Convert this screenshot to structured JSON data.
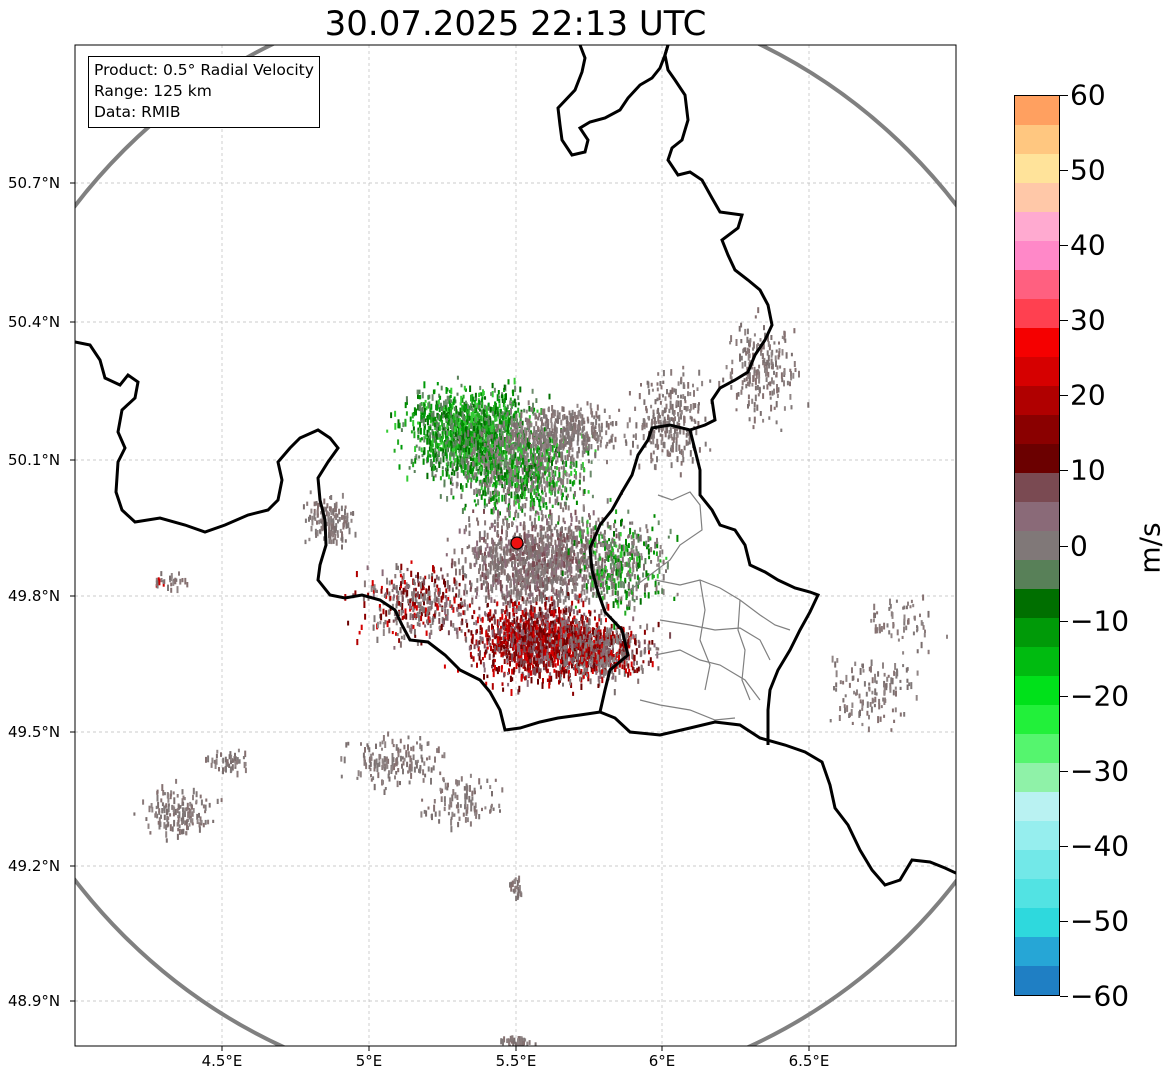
{
  "title": "30.07.2025 22:13 UTC",
  "info": {
    "line1": "Product: 0.5° Radial Velocity",
    "line2": "Range: 125 km",
    "line3": "Data: RMIB"
  },
  "axes": {
    "lat_labels": [
      "50.7°N",
      "50.4°N",
      "50.1°N",
      "49.8°N",
      "49.5°N",
      "49.2°N",
      "48.9°N"
    ],
    "lon_labels": [
      "4.5°E",
      "5°E",
      "5.5°E",
      "6°E",
      "6.5°E"
    ]
  },
  "colorbar": {
    "unit": "m/s",
    "ticks": [
      "60",
      "50",
      "40",
      "30",
      "20",
      "10",
      "0",
      "−10",
      "−20",
      "−30",
      "−40",
      "−50",
      "−60"
    ],
    "min": -60,
    "max": 60,
    "colors": [
      "#1f7fc4",
      "#26a6d6",
      "#2ed9dd",
      "#52e3e3",
      "#72e8e8",
      "#96eeee",
      "#b9f2f2",
      "#8ff2a8",
      "#55f56e",
      "#22f03a",
      "#00e11a",
      "#00bb10",
      "#009a08",
      "#006f00",
      "#588058",
      "#807878",
      "#8a6a78",
      "#7a4a52",
      "#6b0000",
      "#8a0000",
      "#b00000",
      "#d60000",
      "#f50000",
      "#ff4050",
      "#ff6080",
      "#ff88c8",
      "#ffaad0",
      "#ffc8a8",
      "#ffe39a",
      "#ffc780",
      "#ffa060"
    ]
  },
  "radar": {
    "site": "radar-site",
    "ring": "range-ring"
  }
}
